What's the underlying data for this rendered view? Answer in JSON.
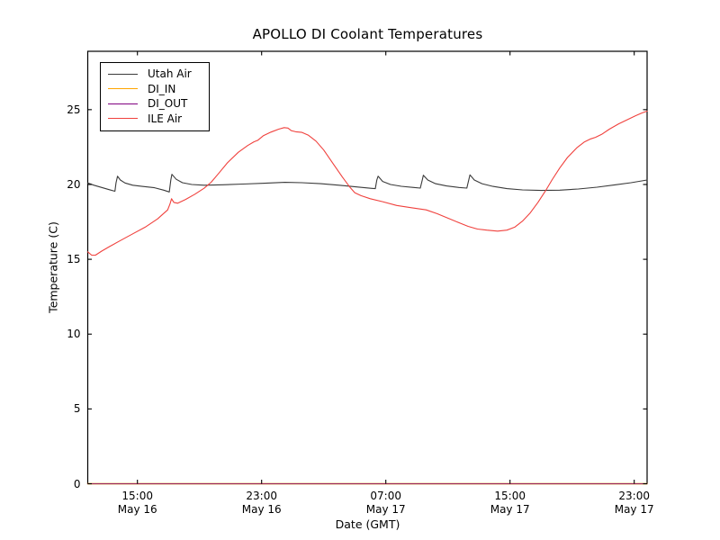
{
  "figure": {
    "title": "APOLLO DI Coolant Temperatures",
    "xlabel": "Date (GMT)",
    "ylabel": "Temperature (C)",
    "background": "#ffffff",
    "spine_color": "#000000",
    "bottom_spine_blend_color": "#6b4752"
  },
  "legend": {
    "position": "upper left",
    "items": [
      {
        "label": "Utah Air",
        "color": "#3a3a3a"
      },
      {
        "label": "DI_IN",
        "color": "#ffa500"
      },
      {
        "label": "DI_OUT",
        "color": "#800080"
      },
      {
        "label": "ILE Air",
        "color": "#f0413d"
      }
    ]
  },
  "chart_data": {
    "type": "line",
    "title": "APOLLO DI Coolant Temperatures",
    "xlabel": "Date (GMT)",
    "ylabel": "Temperature (C)",
    "grid": false,
    "legend_position": "upper left",
    "x_unit": "hours GMT from May 16 00:00",
    "xlim": [
      11.8,
      47.83
    ],
    "ylim": [
      0,
      28.9
    ],
    "yticks": [
      0,
      5,
      10,
      15,
      20,
      25
    ],
    "xticks": [
      {
        "t": 15,
        "time": "15:00",
        "date": "May 16"
      },
      {
        "t": 23,
        "time": "23:00",
        "date": "May 16"
      },
      {
        "t": 31,
        "time": "07:00",
        "date": "May 17"
      },
      {
        "t": 39,
        "time": "15:00",
        "date": "May 17"
      },
      {
        "t": 47,
        "time": "23:00",
        "date": "May 17"
      }
    ],
    "series": [
      {
        "name": "Utah Air",
        "color": "#3a3a3a",
        "width": 1.1,
        "opacity": 1,
        "points": [
          [
            11.8,
            20.1
          ],
          [
            12.2,
            19.95
          ],
          [
            12.7,
            19.8
          ],
          [
            13.2,
            19.65
          ],
          [
            13.55,
            19.55
          ],
          [
            13.62,
            20.1
          ],
          [
            13.72,
            20.55
          ],
          [
            13.9,
            20.3
          ],
          [
            14.2,
            20.1
          ],
          [
            14.7,
            19.95
          ],
          [
            15.3,
            19.87
          ],
          [
            16.1,
            19.78
          ],
          [
            16.7,
            19.62
          ],
          [
            17.05,
            19.5
          ],
          [
            17.15,
            20.3
          ],
          [
            17.22,
            20.68
          ],
          [
            17.5,
            20.35
          ],
          [
            17.9,
            20.12
          ],
          [
            18.5,
            20.0
          ],
          [
            19.3,
            19.95
          ],
          [
            20.5,
            19.98
          ],
          [
            21.8,
            20.03
          ],
          [
            23.2,
            20.08
          ],
          [
            24.5,
            20.14
          ],
          [
            25.6,
            20.12
          ],
          [
            26.8,
            20.05
          ],
          [
            28.0,
            19.95
          ],
          [
            29.2,
            19.83
          ],
          [
            30.1,
            19.74
          ],
          [
            30.32,
            19.72
          ],
          [
            30.42,
            20.3
          ],
          [
            30.5,
            20.55
          ],
          [
            30.8,
            20.2
          ],
          [
            31.3,
            20.0
          ],
          [
            32.0,
            19.88
          ],
          [
            32.8,
            19.8
          ],
          [
            33.22,
            19.76
          ],
          [
            33.35,
            20.3
          ],
          [
            33.42,
            20.62
          ],
          [
            33.7,
            20.3
          ],
          [
            34.2,
            20.05
          ],
          [
            34.9,
            19.9
          ],
          [
            35.7,
            19.8
          ],
          [
            36.22,
            19.76
          ],
          [
            36.35,
            20.35
          ],
          [
            36.42,
            20.64
          ],
          [
            36.7,
            20.3
          ],
          [
            37.2,
            20.05
          ],
          [
            37.9,
            19.87
          ],
          [
            38.8,
            19.72
          ],
          [
            39.8,
            19.64
          ],
          [
            41.0,
            19.6
          ],
          [
            42.2,
            19.62
          ],
          [
            43.4,
            19.7
          ],
          [
            44.6,
            19.82
          ],
          [
            45.8,
            19.98
          ],
          [
            46.8,
            20.12
          ],
          [
            47.83,
            20.3
          ]
        ]
      },
      {
        "name": "DI_IN",
        "color": "#ffa500",
        "width": 1.4,
        "opacity": 0.9,
        "points": [
          [
            11.8,
            0
          ],
          [
            47.83,
            0
          ]
        ]
      },
      {
        "name": "DI_OUT",
        "color": "#800080",
        "width": 1.0,
        "opacity": 0.75,
        "points": [
          [
            11.8,
            0
          ],
          [
            47.83,
            0
          ]
        ]
      },
      {
        "name": "ILE Air",
        "color": "#f0413d",
        "width": 1.1,
        "opacity": 1,
        "points": [
          [
            11.8,
            15.5
          ],
          [
            12.05,
            15.28
          ],
          [
            12.3,
            15.28
          ],
          [
            12.7,
            15.55
          ],
          [
            13.2,
            15.85
          ],
          [
            13.9,
            16.25
          ],
          [
            14.7,
            16.7
          ],
          [
            15.5,
            17.15
          ],
          [
            16.3,
            17.7
          ],
          [
            16.95,
            18.3
          ],
          [
            17.1,
            18.7
          ],
          [
            17.2,
            19.05
          ],
          [
            17.35,
            18.8
          ],
          [
            17.6,
            18.75
          ],
          [
            18.1,
            19.0
          ],
          [
            18.7,
            19.35
          ],
          [
            19.3,
            19.75
          ],
          [
            19.75,
            20.15
          ],
          [
            20.2,
            20.7
          ],
          [
            20.8,
            21.45
          ],
          [
            21.5,
            22.15
          ],
          [
            22.1,
            22.6
          ],
          [
            22.5,
            22.85
          ],
          [
            22.75,
            22.95
          ],
          [
            23.1,
            23.25
          ],
          [
            23.6,
            23.5
          ],
          [
            24.1,
            23.7
          ],
          [
            24.45,
            23.8
          ],
          [
            24.7,
            23.77
          ],
          [
            24.9,
            23.6
          ],
          [
            25.2,
            23.52
          ],
          [
            25.6,
            23.48
          ],
          [
            26.0,
            23.3
          ],
          [
            26.5,
            22.9
          ],
          [
            27.0,
            22.3
          ],
          [
            27.6,
            21.4
          ],
          [
            28.2,
            20.5
          ],
          [
            28.7,
            19.8
          ],
          [
            29.0,
            19.45
          ],
          [
            29.4,
            19.25
          ],
          [
            30.0,
            19.05
          ],
          [
            30.8,
            18.85
          ],
          [
            31.7,
            18.6
          ],
          [
            32.6,
            18.45
          ],
          [
            33.6,
            18.3
          ],
          [
            34.3,
            18.05
          ],
          [
            35.0,
            17.75
          ],
          [
            35.7,
            17.45
          ],
          [
            36.3,
            17.2
          ],
          [
            36.9,
            17.02
          ],
          [
            37.5,
            16.95
          ],
          [
            38.2,
            16.88
          ],
          [
            38.8,
            16.95
          ],
          [
            39.3,
            17.15
          ],
          [
            39.8,
            17.55
          ],
          [
            40.3,
            18.1
          ],
          [
            40.8,
            18.8
          ],
          [
            41.3,
            19.6
          ],
          [
            41.7,
            20.3
          ],
          [
            42.2,
            21.1
          ],
          [
            42.7,
            21.8
          ],
          [
            43.3,
            22.45
          ],
          [
            43.8,
            22.85
          ],
          [
            44.2,
            23.05
          ],
          [
            44.5,
            23.15
          ],
          [
            44.9,
            23.35
          ],
          [
            45.4,
            23.7
          ],
          [
            46.0,
            24.05
          ],
          [
            46.6,
            24.35
          ],
          [
            47.1,
            24.6
          ],
          [
            47.5,
            24.78
          ],
          [
            47.83,
            24.9
          ]
        ]
      }
    ]
  }
}
